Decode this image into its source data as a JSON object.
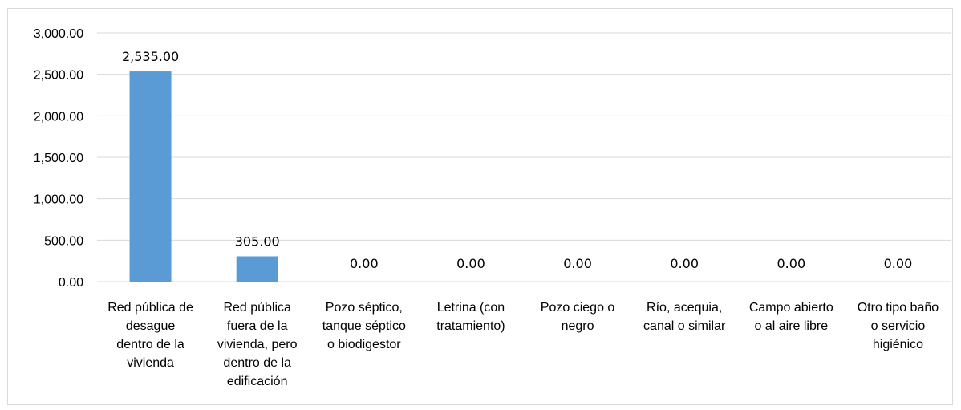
{
  "chart_data": {
    "type": "bar",
    "categories": [
      "Red pública de desague dentro de la vivienda",
      "Red pública fuera de la vivienda, pero dentro de la edificación",
      "Pozo séptico, tanque séptico o biodigestor",
      "Letrina (con tratamiento)",
      "Pozo ciego o negro",
      "Río, acequia, canal o similar",
      "Campo abierto o al aire libre",
      "Otro tipo baño o servicio higiénico"
    ],
    "category_lines": [
      [
        "Red pública de",
        "desague",
        "dentro de la",
        "vivienda"
      ],
      [
        "Red pública",
        "fuera de la",
        "vivienda, pero",
        "dentro de la",
        "edificación"
      ],
      [
        "Pozo séptico,",
        "tanque séptico",
        "o biodigestor"
      ],
      [
        "Letrina (con",
        "tratamiento)"
      ],
      [
        "Pozo ciego o",
        "negro"
      ],
      [
        "Río, acequia,",
        "canal o similar"
      ],
      [
        "Campo abierto",
        "o al aire libre"
      ],
      [
        "Otro tipo baño",
        "o servicio",
        "higiénico"
      ]
    ],
    "values": [
      2535,
      305,
      0,
      0,
      0,
      0,
      0,
      0
    ],
    "data_labels": [
      "2,535.00",
      "305.00",
      "0.00",
      "0.00",
      "0.00",
      "0.00",
      "0.00",
      "0.00"
    ],
    "y_ticks": [
      "0.00",
      "500.00",
      "1,000.00",
      "1,500.00",
      "2,000.00",
      "2,500.00",
      "3,000.00"
    ],
    "ylim": [
      0,
      3000
    ],
    "y_step": 500,
    "grid": true,
    "legend": "none",
    "bar_color": "#5b9bd5",
    "grid_color": "#d9d9d9"
  }
}
